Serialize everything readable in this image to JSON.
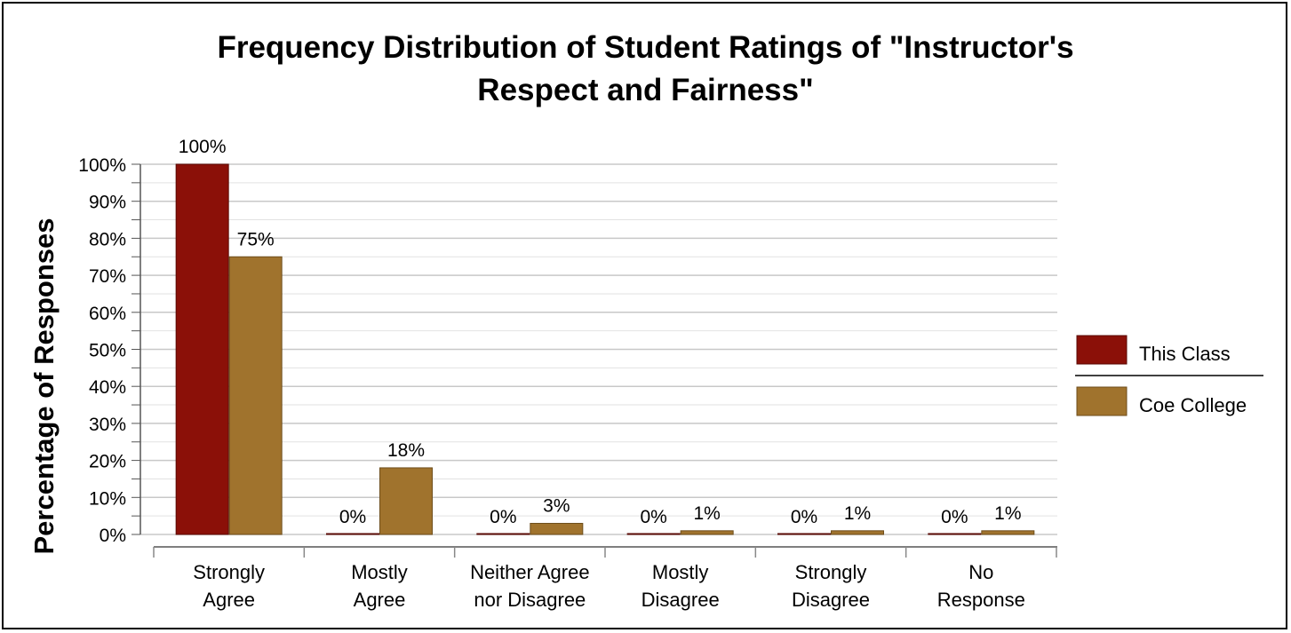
{
  "chart_data": {
    "type": "bar",
    "title_lines": [
      "Frequency Distribution of Student Ratings of \"Instructor's",
      "Respect and Fairness\""
    ],
    "ylabel": "Percentage of Responses",
    "xlabel": "",
    "categories": [
      [
        "Strongly",
        "Agree"
      ],
      [
        "Mostly",
        "Agree"
      ],
      [
        "Neither Agree",
        "nor Disagree"
      ],
      [
        "Mostly",
        "Disagree"
      ],
      [
        "Strongly",
        "Disagree"
      ],
      [
        "No",
        "Response"
      ]
    ],
    "series": [
      {
        "name": "This Class",
        "color": "#8b1008",
        "values": [
          100,
          0,
          0,
          0,
          0,
          0
        ],
        "labels": [
          "100%",
          "0%",
          "0%",
          "0%",
          "0%",
          "0%"
        ]
      },
      {
        "name": "Coe College",
        "color": "#a0732d",
        "values": [
          75,
          18,
          3,
          1,
          1,
          1
        ],
        "labels": [
          "75%",
          "18%",
          "3%",
          "1%",
          "1%",
          "1%"
        ]
      }
    ],
    "ylim": [
      0,
      100
    ],
    "yticks": [
      0,
      10,
      20,
      30,
      40,
      50,
      60,
      70,
      80,
      90,
      100
    ],
    "ytick_labels": [
      "0%",
      "10%",
      "20%",
      "30%",
      "40%",
      "50%",
      "60%",
      "70%",
      "80%",
      "90%",
      "100%"
    ],
    "grid": true,
    "legend_position": "right"
  }
}
